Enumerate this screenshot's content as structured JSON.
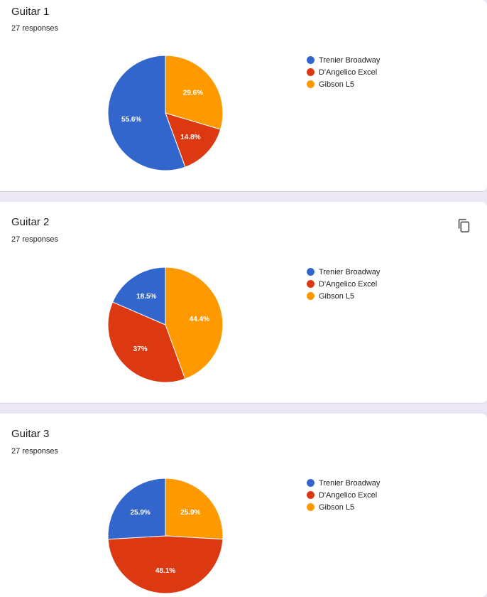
{
  "colors": {
    "trenier": "#3366cc",
    "dangelico": "#dc3912",
    "gibson": "#ff9900"
  },
  "icons": {
    "copy": "copy-icon"
  },
  "questions": [
    {
      "title": "Guitar 1",
      "responses": "27 responses"
    },
    {
      "title": "Guitar 2",
      "responses": "27 responses"
    },
    {
      "title": "Guitar 3",
      "responses": "27 responses"
    }
  ],
  "chart_data": [
    {
      "type": "pie",
      "title": "Guitar 1",
      "categories": [
        "Trenier Broadway",
        "D'Angelico Excel",
        "Gibson L5"
      ],
      "values": [
        55.6,
        14.8,
        29.6
      ],
      "labels": [
        "55.6%",
        "14.8%",
        "29.6%"
      ],
      "legend": "right"
    },
    {
      "type": "pie",
      "title": "Guitar 2",
      "categories": [
        "Trenier Broadway",
        "D'Angelico Excel",
        "Gibson L5"
      ],
      "values": [
        18.5,
        37,
        44.4
      ],
      "labels": [
        "18.5%",
        "37%",
        "44.4%"
      ],
      "legend": "right"
    },
    {
      "type": "pie",
      "title": "Guitar 3",
      "categories": [
        "Trenier Broadway",
        "D'Angelico Excel",
        "Gibson L5"
      ],
      "values": [
        25.9,
        48.1,
        25.9
      ],
      "labels": [
        "25.9%",
        "48.1%",
        "25.9%"
      ],
      "legend": "right"
    }
  ]
}
